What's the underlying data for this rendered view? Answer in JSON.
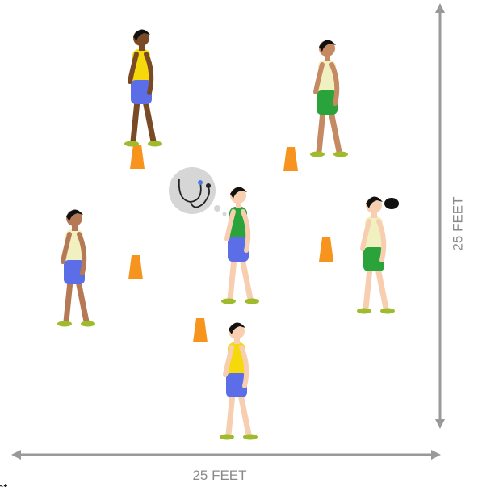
{
  "labels": {
    "height": "25 FEET",
    "width": "25 FEET"
  },
  "fragment": "st"
}
